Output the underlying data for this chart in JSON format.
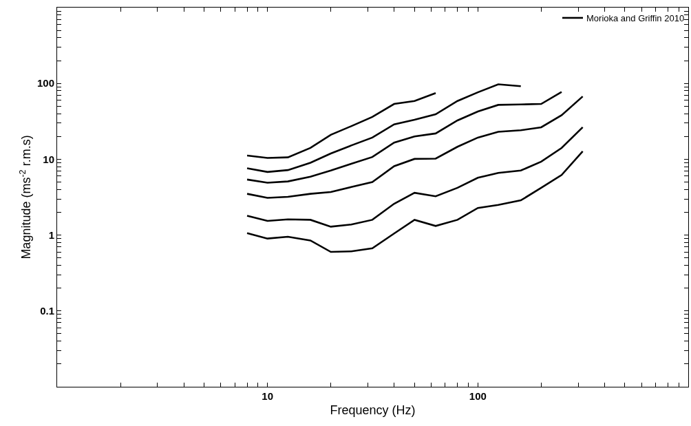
{
  "chart_data": {
    "type": "line",
    "xlabel": "Frequency (Hz)",
    "ylabel": "Magnitude (ms$^{-2}$ r.m.s)",
    "log": "xy",
    "legend": "top right",
    "marker": "none",
    "line_style": "solid",
    "xlim": [
      1,
      1000
    ],
    "ylim": [
      0.01,
      1000
    ],
    "xticks": [
      {
        "value": 2,
        "label": null
      },
      {
        "value": 3,
        "label": null
      },
      {
        "value": 4,
        "label": null
      },
      {
        "value": 5,
        "label": null
      },
      {
        "value": 6,
        "label": null
      },
      {
        "value": 7,
        "label": null
      },
      {
        "value": 8,
        "label": null
      },
      {
        "value": 9,
        "label": null
      },
      10,
      {
        "value": 20,
        "label": null
      },
      {
        "value": 30,
        "label": null
      },
      {
        "value": 40,
        "label": null
      },
      {
        "value": 50,
        "label": null
      },
      {
        "value": 60,
        "label": null
      },
      {
        "value": 70,
        "label": null
      },
      {
        "value": 80,
        "label": null
      },
      {
        "value": 90,
        "label": null
      },
      100,
      {
        "value": 200,
        "label": null
      },
      {
        "value": 300,
        "label": null
      },
      {
        "value": 400,
        "label": null
      },
      {
        "value": 500,
        "label": null
      },
      {
        "value": 600,
        "label": null
      },
      {
        "value": 700,
        "label": null
      },
      {
        "value": 800,
        "label": null
      },
      {
        "value": 900,
        "label": null
      }
    ],
    "yticks": [
      {
        "value": 0.02,
        "label": null
      },
      {
        "value": 0.03,
        "label": null
      },
      {
        "value": 0.04,
        "label": null
      },
      {
        "value": 0.05,
        "label": null
      },
      {
        "value": 0.06,
        "label": null
      },
      {
        "value": 0.07,
        "label": null
      },
      {
        "value": 0.08,
        "label": null
      },
      {
        "value": 0.09,
        "label": null
      },
      0.1,
      {
        "value": 0.2,
        "label": null
      },
      {
        "value": 0.3,
        "label": null
      },
      {
        "value": 0.4,
        "label": null
      },
      {
        "value": 0.5,
        "label": null
      },
      {
        "value": 0.6,
        "label": null
      },
      {
        "value": 0.7,
        "label": null
      },
      {
        "value": 0.8,
        "label": null
      },
      {
        "value": 0.9,
        "label": null
      },
      1,
      {
        "value": 2,
        "label": null
      },
      {
        "value": 3,
        "label": null
      },
      {
        "value": 4,
        "label": null
      },
      {
        "value": 5,
        "label": null
      },
      {
        "value": 6,
        "label": null
      },
      {
        "value": 7,
        "label": null
      },
      {
        "value": 8,
        "label": null
      },
      {
        "value": 9,
        "label": null
      },
      10,
      {
        "value": 20,
        "label": null
      },
      {
        "value": 30,
        "label": null
      },
      {
        "value": 40,
        "label": null
      },
      {
        "value": 50,
        "label": null
      },
      {
        "value": 60,
        "label": null
      },
      {
        "value": 70,
        "label": null
      },
      {
        "value": 80,
        "label": null
      },
      {
        "value": 90,
        "label": null
      },
      100,
      {
        "value": 200,
        "label": null
      },
      {
        "value": 300,
        "label": null
      },
      {
        "value": 400,
        "label": null
      },
      {
        "value": 500,
        "label": null
      },
      {
        "value": 600,
        "label": null
      },
      {
        "value": 700,
        "label": null
      },
      {
        "value": 800,
        "label": null
      },
      {
        "value": 900,
        "label": null
      }
    ],
    "x": [
      8,
      10,
      12.5,
      16,
      20,
      25,
      31.5,
      40,
      50,
      63,
      80,
      100,
      125,
      160,
      200,
      250,
      315
    ],
    "series": [
      {
        "name": "Morioka and Griffin 2010",
        "color": "#000000",
        "values": [
          11.2,
          10.4,
          10.6,
          14.1,
          21.0,
          27.3,
          36.1,
          53.6,
          58.7,
          74.6,
          null,
          null,
          null,
          null,
          null,
          null,
          null
        ]
      },
      {
        "color": "#000000",
        "values": [
          7.6,
          6.8,
          7.2,
          9.0,
          11.9,
          15.2,
          19.3,
          28.9,
          33.2,
          39.2,
          58.7,
          76.3,
          97.3,
          92,
          null,
          null,
          null
        ]
      },
      {
        "color": "#000000",
        "values": [
          5.4,
          4.9,
          5.1,
          5.9,
          7.1,
          8.7,
          10.7,
          16.6,
          20.0,
          21.9,
          32.5,
          42.6,
          52.1,
          52.8,
          53.6,
          77.3,
          null
        ]
      },
      {
        "color": "#000000",
        "values": [
          3.5,
          3.1,
          3.2,
          3.5,
          3.7,
          4.3,
          5.0,
          8.1,
          10.1,
          10.2,
          14.6,
          19.3,
          23.0,
          24.1,
          26.4,
          38.1,
          67.3
        ]
      },
      {
        "color": "#000000",
        "values": [
          1.8,
          1.54,
          1.61,
          1.59,
          1.29,
          1.38,
          1.59,
          2.59,
          3.61,
          3.25,
          4.2,
          5.7,
          6.6,
          7.1,
          9.3,
          14.1,
          26.4
        ]
      },
      {
        "color": "#000000",
        "values": [
          1.06,
          0.9,
          0.95,
          0.85,
          0.6,
          0.61,
          0.67,
          1.05,
          1.59,
          1.32,
          1.59,
          2.28,
          2.5,
          2.87,
          4.2,
          6.2,
          12.7
        ]
      }
    ]
  }
}
